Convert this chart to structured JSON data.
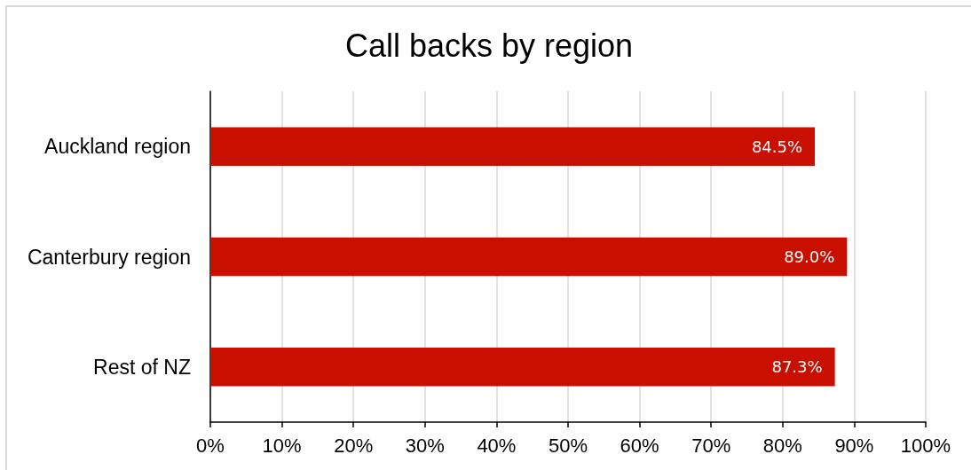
{
  "chart_data": {
    "type": "bar",
    "orientation": "horizontal",
    "title": "Call backs by region",
    "categories": [
      "Auckland region",
      "Canterbury region",
      "Rest of NZ"
    ],
    "values": [
      84.5,
      89.0,
      87.3
    ],
    "color": "#c80f00",
    "value_labels": [
      "84.5%",
      "89.0%",
      "87.3%"
    ],
    "xlim": [
      0,
      100
    ],
    "xticks": [
      {
        "value": 0,
        "label": "0%"
      },
      {
        "value": 10,
        "label": "10%"
      },
      {
        "value": 20,
        "label": "20%"
      },
      {
        "value": 30,
        "label": "30%"
      },
      {
        "value": 40,
        "label": "40%"
      },
      {
        "value": 50,
        "label": "50%"
      },
      {
        "value": 60,
        "label": "60%"
      },
      {
        "value": 70,
        "label": "70%"
      },
      {
        "value": 80,
        "label": "80%"
      },
      {
        "value": 90,
        "label": "90%"
      },
      {
        "value": 100,
        "label": "100%"
      }
    ],
    "grid": "x"
  }
}
